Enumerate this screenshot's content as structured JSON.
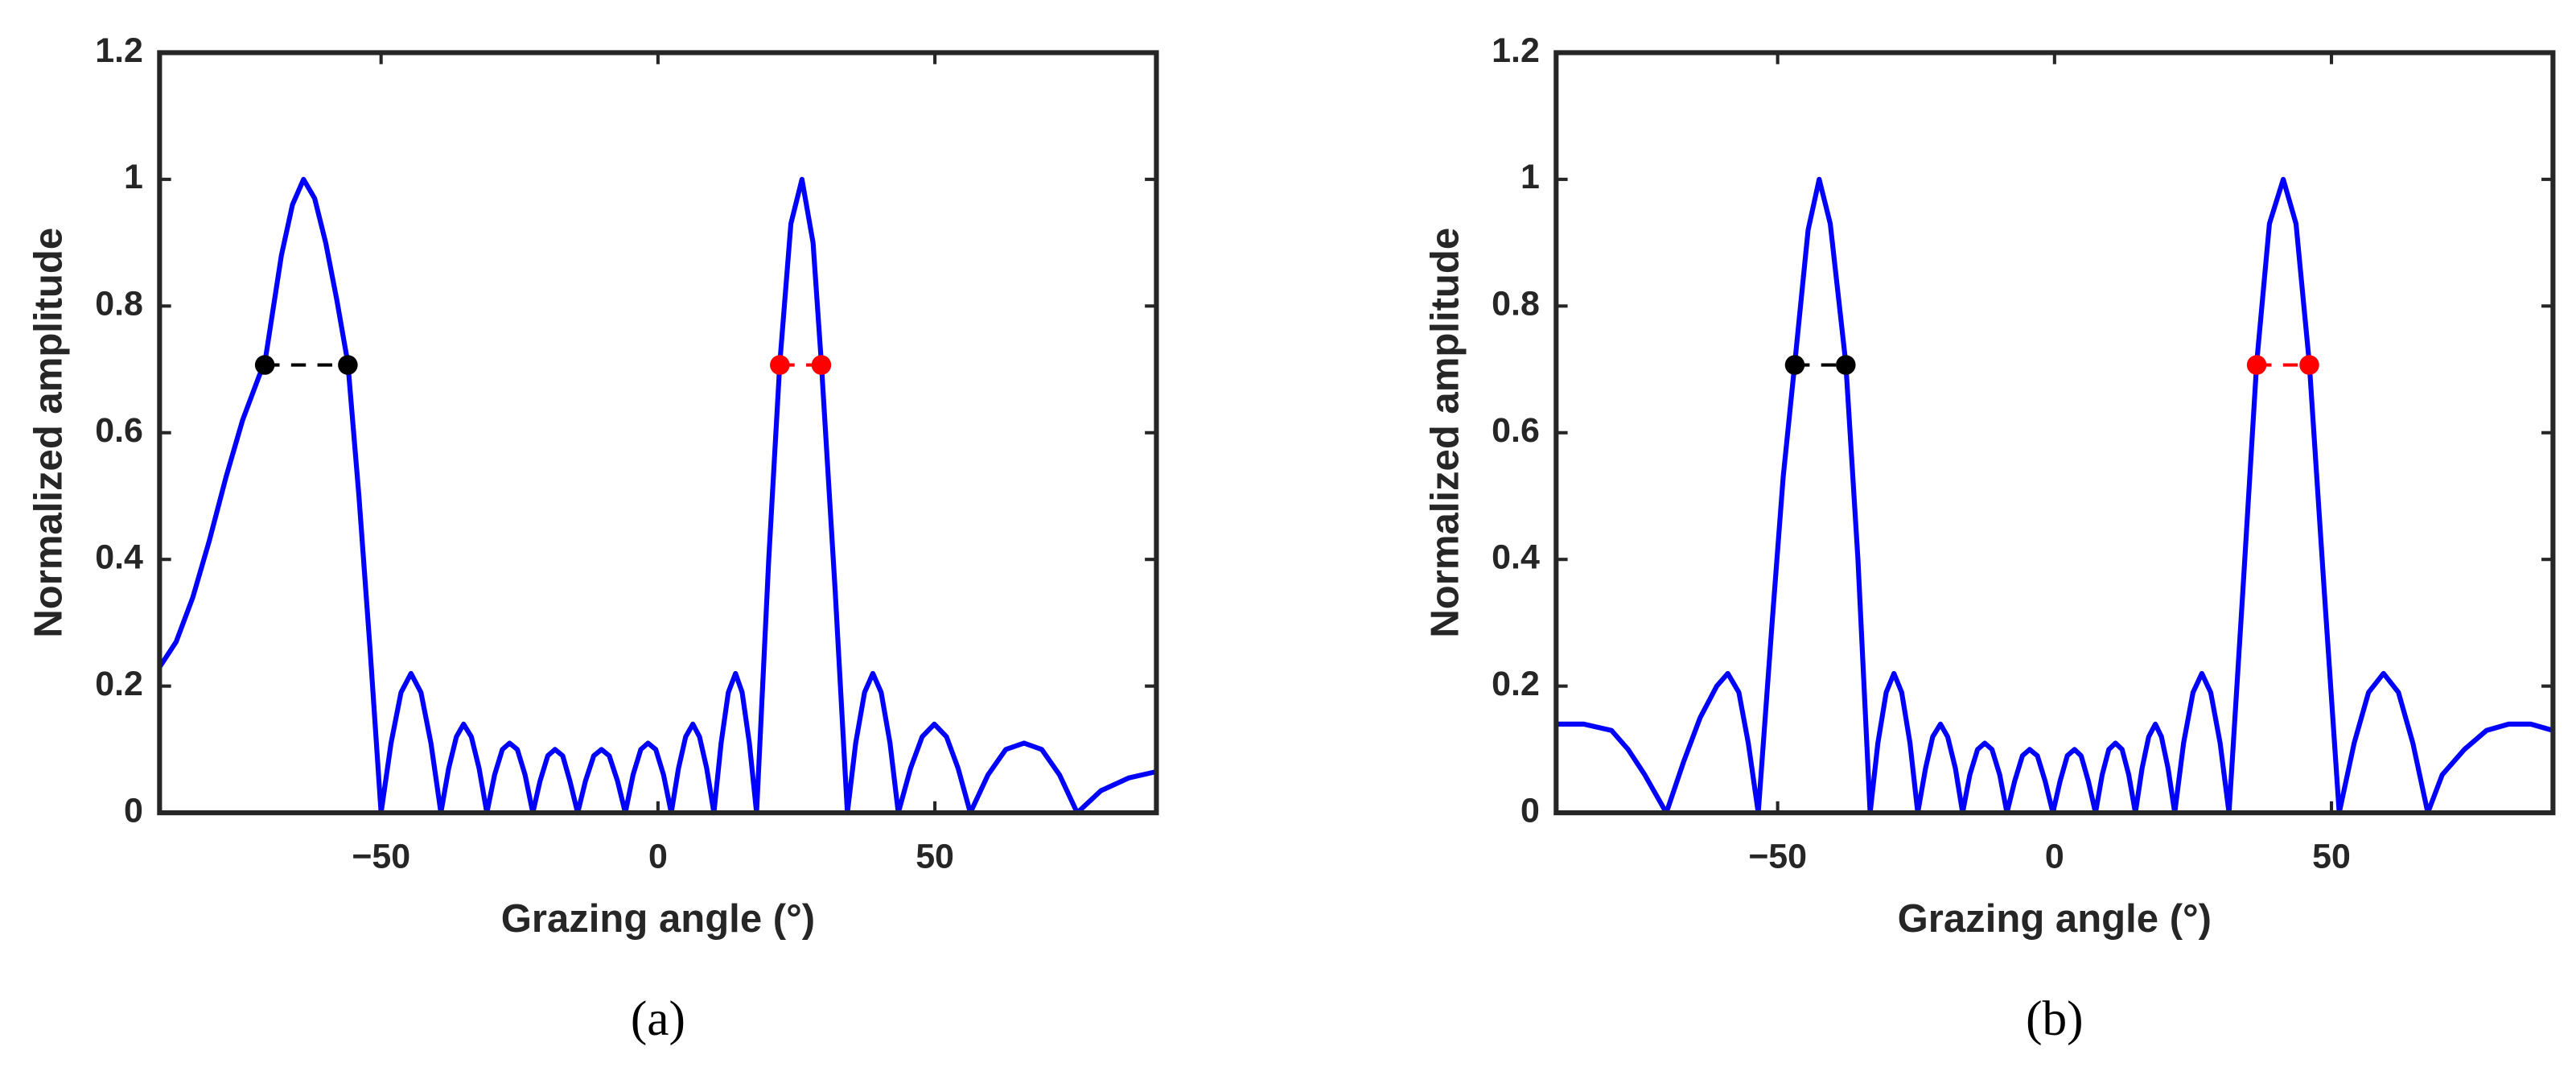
{
  "chart_data": [
    {
      "type": "line",
      "caption": "(a)",
      "xlabel": "Grazing angle (°)",
      "ylabel": "Normalized amplitude",
      "xlim": [
        -90,
        90
      ],
      "ylim": [
        0,
        1.2
      ],
      "xticks": [
        {
          "value": -50,
          "label": "−50"
        },
        0,
        50
      ],
      "yticks": [
        0,
        0.2,
        0.4,
        0.6,
        0.8,
        1,
        1.2
      ],
      "series": [
        {
          "color": "#0000ff",
          "x": [
            -90,
            -87,
            -84,
            -81,
            -78,
            -75,
            -72,
            -71,
            -68,
            -66,
            -64,
            -62,
            -60,
            -58,
            -56,
            -54,
            -52,
            -50,
            -48.2,
            -46.4,
            -44.6,
            -42.8,
            -41,
            -39.2,
            -37.8,
            -36.4,
            -35.1,
            -33.7,
            -32.3,
            -30.9,
            -29.5,
            -28.1,
            -26.8,
            -25.4,
            -24,
            -22.6,
            -21.3,
            -19.9,
            -18.6,
            -17.2,
            -15.9,
            -14.5,
            -13.1,
            -11.6,
            -10.2,
            -8.8,
            -7.3,
            -5.9,
            -4.5,
            -3.1,
            -1.8,
            -0.4,
            1,
            2.4,
            3.7,
            5,
            6.3,
            7.5,
            8.8,
            10.1,
            11.4,
            12.7,
            14,
            15.2,
            16.5,
            17.8,
            20,
            22,
            24,
            26,
            28,
            29.5,
            32,
            34.2,
            35.7,
            37.3,
            38.8,
            40.3,
            41.9,
            43.4,
            45.6,
            47.7,
            49.9,
            52.1,
            54.2,
            56.4,
            59.6,
            62.8,
            66.1,
            69.3,
            72.5,
            75.7,
            80,
            85,
            90
          ],
          "values": [
            0.23,
            0.27,
            0.34,
            0.43,
            0.53,
            0.62,
            0.69,
            0.71,
            0.88,
            0.96,
            1,
            0.97,
            0.9,
            0.81,
            0.71,
            0.5,
            0.26,
            0,
            0.11,
            0.19,
            0.22,
            0.19,
            0.11,
            0,
            0.07,
            0.12,
            0.14,
            0.12,
            0.07,
            0,
            0.06,
            0.1,
            0.11,
            0.1,
            0.06,
            0,
            0.05,
            0.09,
            0.1,
            0.09,
            0.05,
            0,
            0.05,
            0.09,
            0.1,
            0.09,
            0.05,
            0,
            0.06,
            0.1,
            0.11,
            0.1,
            0.06,
            0,
            0.07,
            0.12,
            0.14,
            0.12,
            0.07,
            0,
            0.11,
            0.19,
            0.22,
            0.19,
            0.11,
            0,
            0.4,
            0.71,
            0.93,
            1,
            0.9,
            0.71,
            0.35,
            0,
            0.11,
            0.19,
            0.22,
            0.19,
            0.11,
            0,
            0.07,
            0.12,
            0.14,
            0.12,
            0.07,
            0,
            0.06,
            0.1,
            0.11,
            0.1,
            0.06,
            0,
            0.035,
            0.055,
            0.065
          ]
        }
      ],
      "markers": [
        {
          "color": "#000000",
          "x": [
            -71,
            -56
          ],
          "values": [
            0.707,
            0.707
          ]
        },
        {
          "color": "#ff0000",
          "x": [
            22,
            29.5
          ],
          "values": [
            0.707,
            0.707
          ]
        }
      ]
    },
    {
      "type": "line",
      "caption": "(b)",
      "xlabel": "Grazing angle (°)",
      "ylabel": "Normalized amplitude",
      "xlim": [
        -90,
        90
      ],
      "ylim": [
        0,
        1.2
      ],
      "xticks": [
        {
          "value": -50,
          "label": "−50"
        },
        0,
        50
      ],
      "yticks": [
        0,
        0.2,
        0.4,
        0.6,
        0.8,
        1,
        1.2
      ],
      "series": [
        {
          "color": "#0000ff",
          "x": [
            -90,
            -85,
            -80,
            -77,
            -74,
            -70.1,
            -67,
            -64,
            -61,
            -59,
            -57,
            -55.3,
            -53.5,
            -51,
            -49,
            -46.9,
            -44.5,
            -42.5,
            -40.5,
            -37.7,
            -35.5,
            -33.3,
            -31.9,
            -30.4,
            -29,
            -27.6,
            -26.1,
            -24.7,
            -23.3,
            -22,
            -20.6,
            -19.3,
            -17.9,
            -16.6,
            -15.3,
            -13.9,
            -12.6,
            -11.3,
            -9.9,
            -8.6,
            -7.2,
            -5.8,
            -4.5,
            -3.1,
            -1.7,
            -0.3,
            1,
            2.3,
            3.6,
            4.8,
            6.1,
            7.4,
            8.6,
            9.8,
            11,
            12.2,
            13.4,
            14.6,
            15.8,
            17,
            18.2,
            19.3,
            20.5,
            21.7,
            23.3,
            25,
            26.6,
            28.2,
            29.9,
            31.5,
            34,
            36.5,
            38.8,
            41.3,
            43.6,
            46,
            48.7,
            51.4,
            54.1,
            56.7,
            59.4,
            62.1,
            64.7,
            67.4,
            70,
            74,
            78,
            82,
            86,
            90
          ],
          "values": [
            0.14,
            0.14,
            0.13,
            0.1,
            0.06,
            0,
            0.08,
            0.15,
            0.2,
            0.22,
            0.19,
            0.11,
            0,
            0.3,
            0.53,
            0.71,
            0.92,
            1,
            0.93,
            0.71,
            0.4,
            0,
            0.11,
            0.19,
            0.22,
            0.19,
            0.11,
            0,
            0.07,
            0.12,
            0.14,
            0.12,
            0.07,
            0,
            0.06,
            0.1,
            0.11,
            0.1,
            0.06,
            0,
            0.05,
            0.09,
            0.1,
            0.09,
            0.05,
            0,
            0.05,
            0.09,
            0.1,
            0.09,
            0.05,
            0,
            0.06,
            0.1,
            0.11,
            0.1,
            0.06,
            0,
            0.07,
            0.12,
            0.14,
            0.12,
            0.07,
            0,
            0.11,
            0.19,
            0.22,
            0.19,
            0.11,
            0,
            0.35,
            0.71,
            0.93,
            1,
            0.93,
            0.71,
            0.35,
            0,
            0.11,
            0.19,
            0.22,
            0.19,
            0.11,
            0,
            0.06,
            0.1,
            0.13,
            0.14,
            0.14,
            0.13
          ]
        }
      ],
      "markers": [
        {
          "color": "#000000",
          "x": [
            -46.9,
            -37.7
          ],
          "values": [
            0.707,
            0.707
          ]
        },
        {
          "color": "#ff0000",
          "x": [
            36.5,
            46
          ],
          "values": [
            0.707,
            0.707
          ]
        }
      ]
    }
  ]
}
